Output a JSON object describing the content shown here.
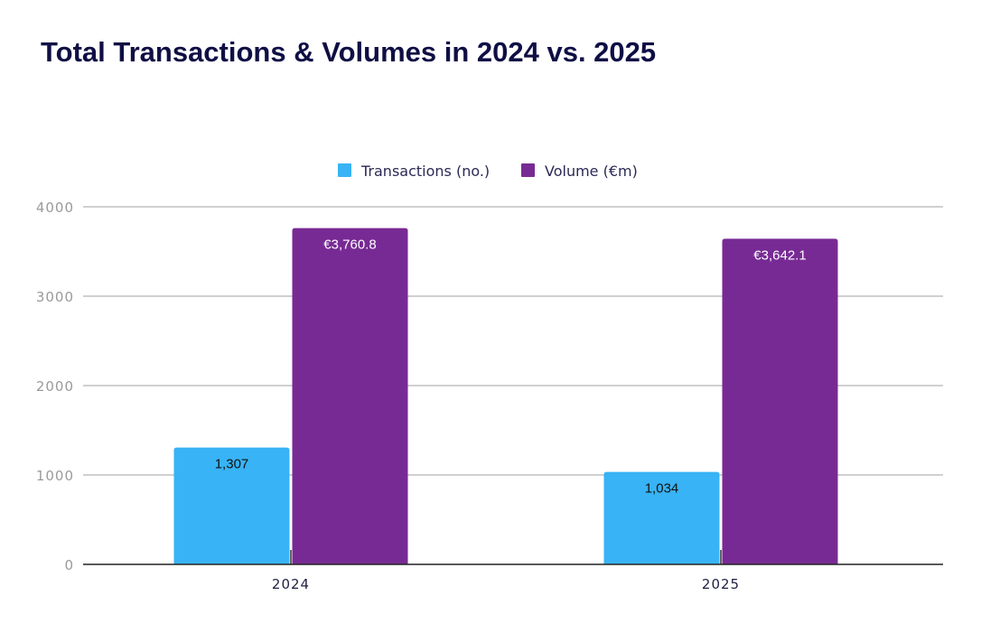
{
  "chart_data": {
    "type": "bar",
    "title": "Total Transactions & Volumes in 2024 vs. 2025",
    "categories": [
      "2024",
      "2025"
    ],
    "series": [
      {
        "name": "Transactions (no.)",
        "values": [
          1307,
          1034
        ],
        "labels": [
          "1,307",
          "1,034"
        ],
        "color": "#38b3f5",
        "label_color": "#111111"
      },
      {
        "name": "Volume (€m)",
        "values": [
          3760.8,
          3642.1
        ],
        "labels": [
          "€3,760.8",
          "€3,642.1"
        ],
        "color": "#772a94",
        "label_color": "#ffffff"
      }
    ],
    "yticks": [
      0,
      1000,
      2000,
      3000,
      4000
    ],
    "ylim": [
      0,
      4000
    ],
    "xlabel": "",
    "ylabel": "",
    "grid": true,
    "legend": "top-center"
  }
}
